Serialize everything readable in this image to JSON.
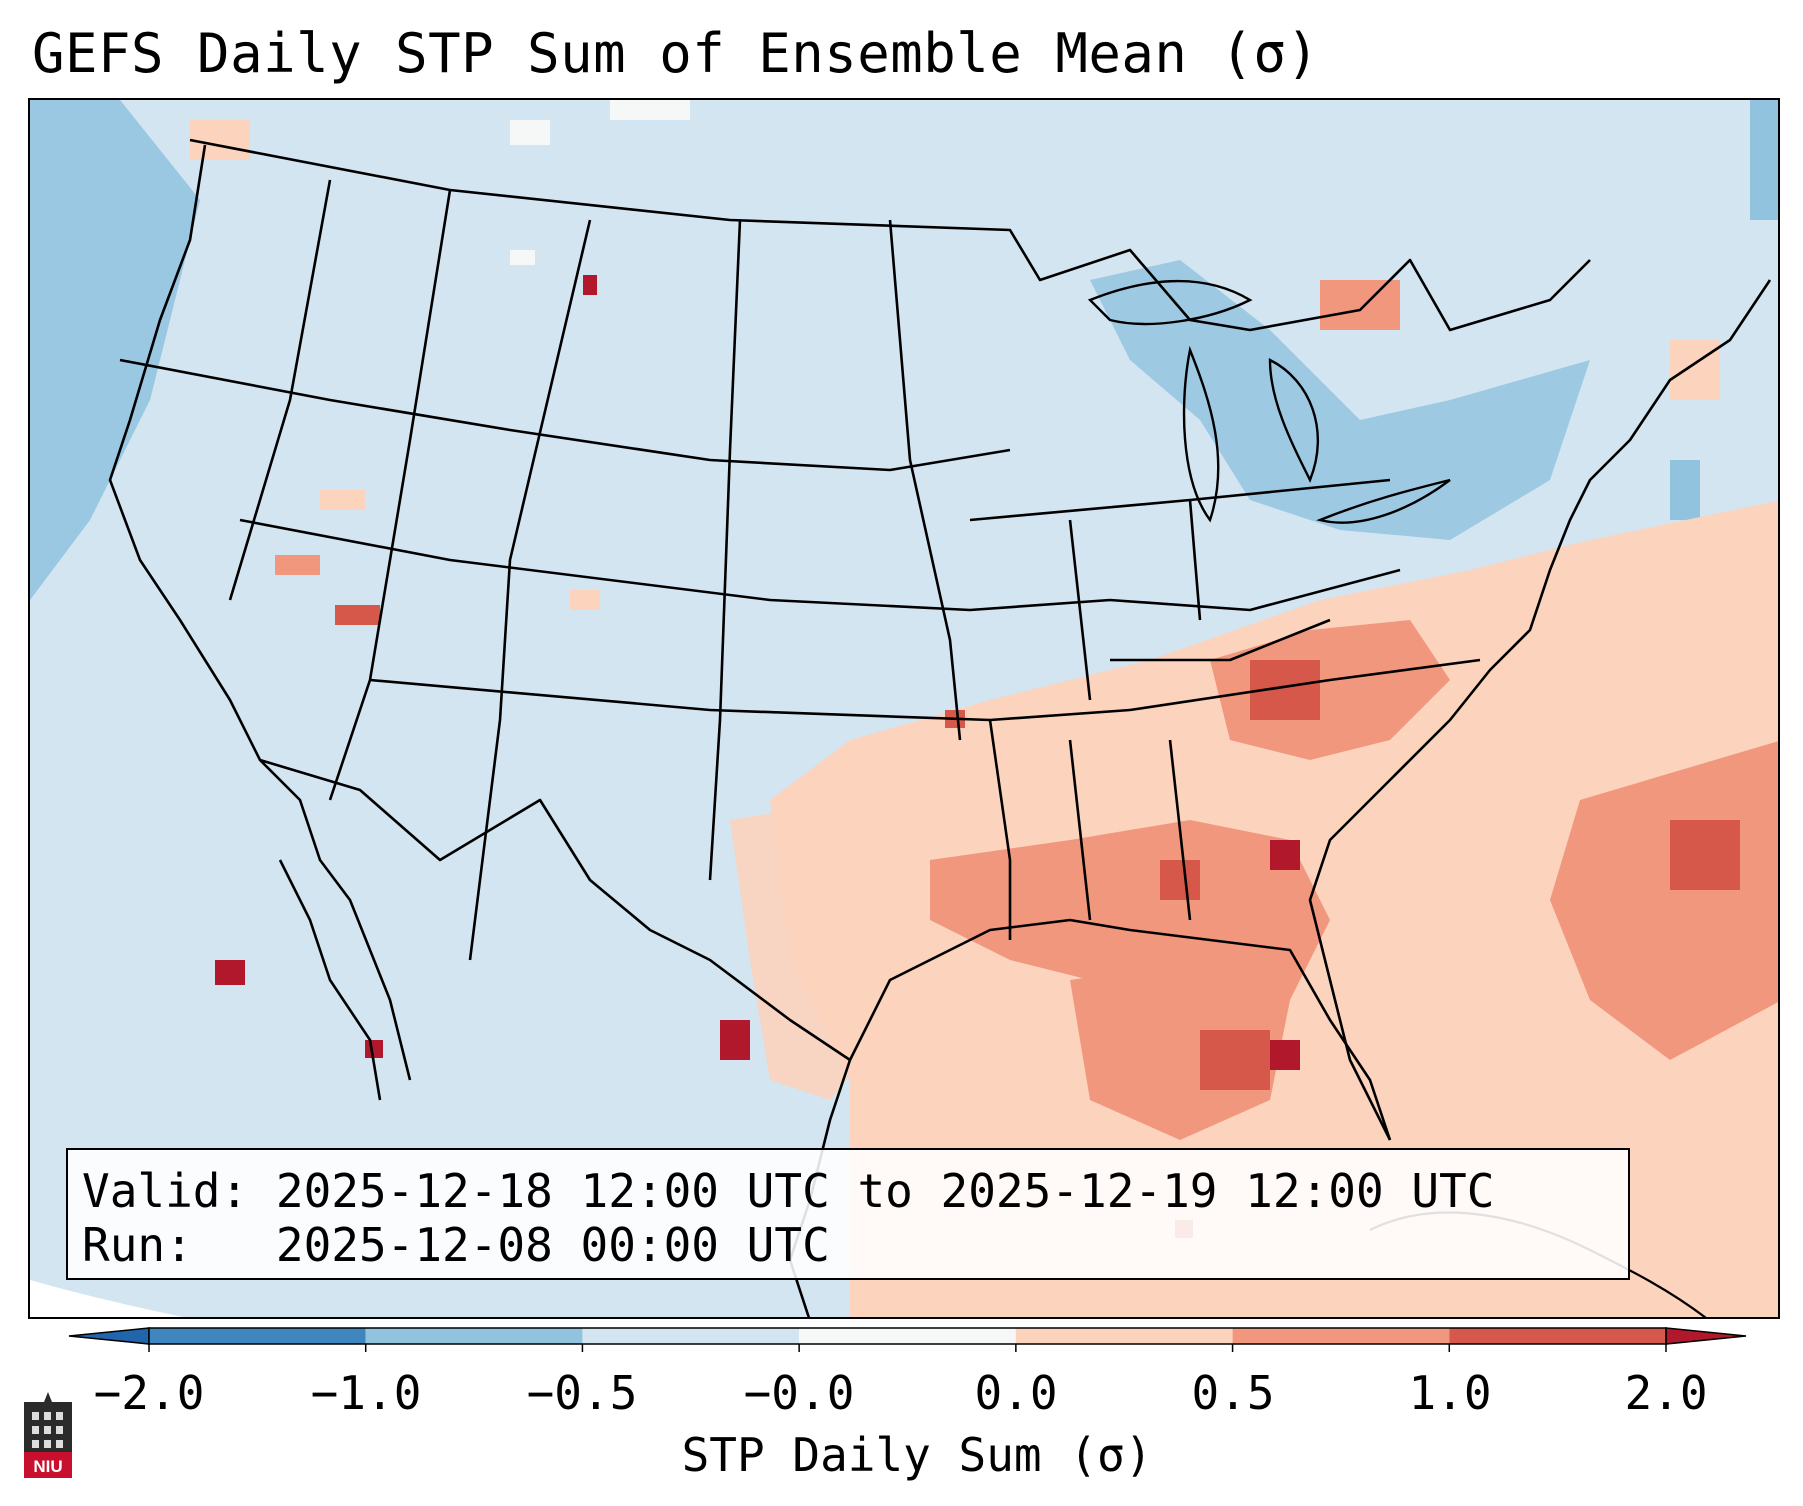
{
  "title": "GEFS Daily STP Sum of Ensemble Mean (σ)",
  "valid_label": "Valid:",
  "valid_range": "2025-12-18 12:00 UTC to 2025-12-19 12:00 UTC",
  "run_label": "Run:",
  "run_time": "2025-12-08 00:00 UTC",
  "colorbar": {
    "label": "STP Daily Sum (σ)",
    "ticks": [
      "−2.0",
      "−1.0",
      "−0.5",
      "−0.0",
      "0.0",
      "0.5",
      "1.0",
      "2.0"
    ],
    "colors": [
      "#3f86bf",
      "#91c2de",
      "#d2e5f1",
      "#f6f7f7",
      "#fcd3bd",
      "#f0977e",
      "#d6584a",
      "#b2182b"
    ],
    "under_color": "#2166ac",
    "over_color": "#b2182b"
  },
  "map": {
    "background": "#d2e5f1",
    "features": [
      "coastlines",
      "country borders",
      "US state borders"
    ]
  },
  "logo_text": "NIU"
}
